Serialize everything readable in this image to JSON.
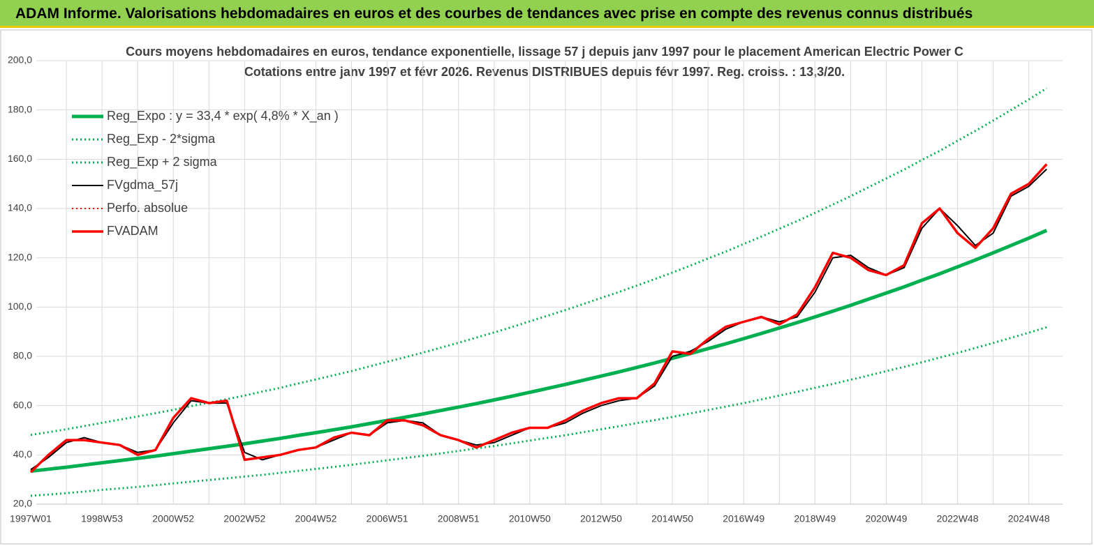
{
  "header": {
    "title": "ADAM Informe. Valorisations hebdomadaires en euros et des courbes de tendances avec prise en compte des revenus connus distribués"
  },
  "chart_data": {
    "type": "line",
    "title": "Cours moyens hebdomadaires en euros, tendance exponentielle, lissage 57 j depuis janv 1997  pour le placement American Electric Power C",
    "subtitle": "Cotations entre janv 1997 et févr 2026. Revenus DISTRIBUES depuis févr 1997. Reg. croiss. : 13,3/20.",
    "categories": [
      "1997W01",
      null,
      null,
      null,
      "1998W53",
      null,
      null,
      null,
      "2000W52",
      null,
      null,
      null,
      "2002W52",
      null,
      null,
      null,
      "2004W52",
      null,
      null,
      null,
      "2006W51",
      null,
      null,
      null,
      "2008W51",
      null,
      null,
      null,
      "2010W50",
      null,
      null,
      null,
      "2012W50",
      null,
      null,
      null,
      "2014W50",
      null,
      null,
      null,
      "2016W49",
      null,
      null,
      null,
      "2018W49",
      null,
      null,
      null,
      "2020W49",
      null,
      null,
      null,
      "2022W48",
      null,
      null,
      null,
      "2024W48",
      null
    ],
    "ylim": [
      20,
      200
    ],
    "yticks": [
      {
        "value": 20,
        "label": "20,0"
      },
      {
        "value": 40,
        "label": "40,0"
      },
      {
        "value": 60,
        "label": "60,0"
      },
      {
        "value": 80,
        "label": "80,0"
      },
      {
        "value": 100,
        "label": "100,0"
      },
      {
        "value": 120,
        "label": "120,0"
      },
      {
        "value": 140,
        "label": "140,0"
      },
      {
        "value": 160,
        "label": "160,0"
      },
      {
        "value": 180,
        "label": "180,0"
      },
      {
        "value": 200,
        "label": "200,0"
      }
    ],
    "grid": true,
    "legend": "top-left",
    "series": [
      {
        "name": "Reg_Expo : y = 33,4 * exp( 4,8% *  X_an )",
        "color": "#00b050",
        "style": "solid",
        "values": [
          33.4,
          34.2,
          35.0,
          35.9,
          36.8,
          37.7,
          38.6,
          39.5,
          40.5,
          41.5,
          42.5,
          43.5,
          44.5,
          45.6,
          46.7,
          47.9,
          49.0,
          50.2,
          51.4,
          52.7,
          54.0,
          55.3,
          56.6,
          58.0,
          59.4,
          60.8,
          62.3,
          63.8,
          65.4,
          67.0,
          68.6,
          70.3,
          72.0,
          73.7,
          75.5,
          77.3,
          79.2,
          81.1,
          83.1,
          85.1,
          87.2,
          89.3,
          91.5,
          93.7,
          96.0,
          98.3,
          100.7,
          103.2,
          105.7,
          108.2,
          110.9,
          113.5,
          116.3,
          119.1,
          122.0,
          125.0,
          128.0,
          131.1
        ]
      },
      {
        "name": "Reg_Exp - 2*sigma",
        "color": "#00b050",
        "style": "dotted",
        "values": [
          23.4,
          23.9,
          24.5,
          25.1,
          25.8,
          26.4,
          27.0,
          27.7,
          28.4,
          29.1,
          29.8,
          30.5,
          31.2,
          31.9,
          32.7,
          33.5,
          34.3,
          35.1,
          36.0,
          36.9,
          37.8,
          38.7,
          39.6,
          40.6,
          41.6,
          42.6,
          43.6,
          44.7,
          45.8,
          46.9,
          48.0,
          49.2,
          50.4,
          51.6,
          52.9,
          54.1,
          55.4,
          56.8,
          58.2,
          59.6,
          61.0,
          62.5,
          64.1,
          65.6,
          67.2,
          68.8,
          70.5,
          72.2,
          74.0,
          75.7,
          77.6,
          79.5,
          81.4,
          83.4,
          85.4,
          87.5,
          89.6,
          91.8
        ]
      },
      {
        "name": "Reg_Exp + 2 sigma",
        "color": "#00b050",
        "style": "dotted",
        "values": [
          48.1,
          49.2,
          50.4,
          51.7,
          53.0,
          54.3,
          55.6,
          56.9,
          58.3,
          59.8,
          61.2,
          62.6,
          64.1,
          65.7,
          67.2,
          69.0,
          70.6,
          72.3,
          74.0,
          75.9,
          77.8,
          79.6,
          81.5,
          83.5,
          85.5,
          87.6,
          89.7,
          91.9,
          94.2,
          96.5,
          98.8,
          101.2,
          103.7,
          106.1,
          108.7,
          111.3,
          114.0,
          116.8,
          119.7,
          122.5,
          125.6,
          128.6,
          131.8,
          134.9,
          138.2,
          141.6,
          145.0,
          148.6,
          152.2,
          155.8,
          159.7,
          163.4,
          167.5,
          171.5,
          175.7,
          180.0,
          184.3,
          188.8
        ]
      },
      {
        "name": "FVgdma_57j",
        "color": "#000000",
        "style": "solid",
        "values": [
          34,
          39,
          45,
          47,
          45,
          44,
          41,
          42,
          53,
          62,
          61,
          61,
          41,
          38,
          40,
          42,
          43,
          46,
          49,
          48,
          53,
          54,
          53,
          48,
          46,
          44,
          45,
          48,
          51,
          51,
          53,
          57,
          60,
          62,
          63,
          68,
          80,
          82,
          86,
          91,
          94,
          96,
          94,
          96,
          106,
          120,
          121,
          116,
          113,
          116,
          132,
          140,
          133,
          125,
          130,
          145,
          149,
          156
        ]
      },
      {
        "name": "Perfo. absolue",
        "color": "#ff0000",
        "style": "dotted",
        "values": [
          null,
          null,
          null,
          null,
          null,
          null,
          null,
          null,
          null,
          null,
          null,
          null,
          null,
          null,
          null,
          null,
          null,
          null,
          null,
          null,
          null,
          null,
          null,
          null,
          null,
          null,
          null,
          null,
          null,
          null,
          null,
          null,
          null,
          null,
          null,
          null,
          null,
          null,
          null,
          null,
          null,
          null,
          null,
          null,
          null,
          null,
          null,
          null,
          null,
          null,
          null,
          null,
          null,
          null,
          null,
          null,
          null,
          null
        ]
      },
      {
        "name": "FVADAM",
        "color": "#ff0000",
        "style": "solid",
        "values": [
          33,
          40,
          46,
          46,
          45,
          44,
          40,
          42,
          55,
          63,
          61,
          62,
          38,
          39,
          40,
          42,
          43,
          47,
          49,
          48,
          54,
          54,
          52,
          48,
          46,
          43,
          46,
          49,
          51,
          51,
          54,
          58,
          61,
          63,
          63,
          69,
          82,
          81,
          87,
          92,
          94,
          96,
          93,
          97,
          108,
          122,
          120,
          115,
          113,
          117,
          134,
          140,
          130,
          124,
          132,
          146,
          150,
          158
        ]
      }
    ]
  }
}
